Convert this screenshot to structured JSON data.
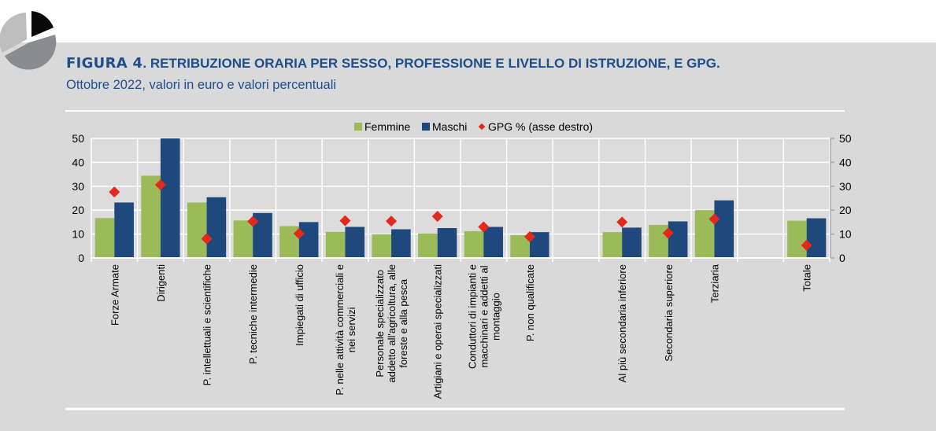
{
  "header": {
    "figure_label": "FIGURA 4",
    "title_rest": ". RETRIBUZIONE ORARIA PER SESSO, PROFESSIONE E LIVELLO DI ISTRUZIONE, E GPG.",
    "subtitle": "Ottobre 2022, valori in euro e valori percentuali",
    "logo_icon": "pie-chart-icon"
  },
  "colors": {
    "femmine": "#9bbb59",
    "maschi": "#1f497d",
    "gpg": "#e3291b",
    "title": "#1f4e8c",
    "banner": "#d9d9d9"
  },
  "chart_data": {
    "type": "bar",
    "title": "RETRIBUZIONE ORARIA PER SESSO, PROFESSIONE E LIVELLO DI ISTRUZIONE, E GPG.",
    "xlabel": "",
    "ylabel": "",
    "ylim": [
      0,
      50
    ],
    "y2lim": [
      0,
      50
    ],
    "yticks": [
      "0",
      "10",
      "20",
      "30",
      "40",
      "50"
    ],
    "y2ticks": [
      "0",
      "10",
      "20",
      "30",
      "40",
      "50"
    ],
    "grid": true,
    "legend_position": "top-center",
    "legend": [
      "Femmine",
      "Maschi",
      "GPG % (asse destro)"
    ],
    "categories": [
      [
        "Forze Armate"
      ],
      [
        "Dirigenti"
      ],
      [
        "P. intellettuali e scientifiche"
      ],
      [
        "P. tecniche intermedie"
      ],
      [
        "Impiegati di ufficio"
      ],
      [
        "P. nelle attività commerciali e",
        "nei servizi"
      ],
      [
        "Personale specializzato",
        "addetto all'agricoltura, alle",
        "foreste e alla pesca"
      ],
      [
        "Artigiani e operai specializzati"
      ],
      [
        "Conduttori di impianti e",
        "macchinari e addetti al",
        "montaggio"
      ],
      [
        "P. non qualificate"
      ],
      [],
      [
        "Al più secondaria inferiore"
      ],
      [
        "Secondaria superiore"
      ],
      [
        "Terziaria"
      ],
      [],
      [
        "Totale"
      ]
    ],
    "series": [
      {
        "name": "Femmine",
        "type": "bar",
        "axis": "left",
        "values": [
          16.7,
          34.4,
          23.2,
          15.7,
          13.3,
          10.9,
          9.9,
          10.2,
          11.2,
          9.6,
          null,
          10.8,
          13.8,
          20.0,
          null,
          15.6
        ]
      },
      {
        "name": "Maschi",
        "type": "bar",
        "axis": "left",
        "values": [
          23.2,
          50.0,
          25.4,
          18.8,
          15.0,
          13.0,
          12.0,
          12.5,
          13.0,
          10.8,
          null,
          12.7,
          15.3,
          24.1,
          null,
          16.6
        ]
      },
      {
        "name": "GPG % (asse destro)",
        "type": "scatter",
        "axis": "right",
        "values": [
          27.6,
          30.6,
          8.0,
          15.3,
          10.2,
          15.6,
          15.4,
          17.4,
          13.0,
          8.9,
          null,
          15.0,
          10.4,
          16.3,
          null,
          5.3
        ]
      }
    ]
  }
}
